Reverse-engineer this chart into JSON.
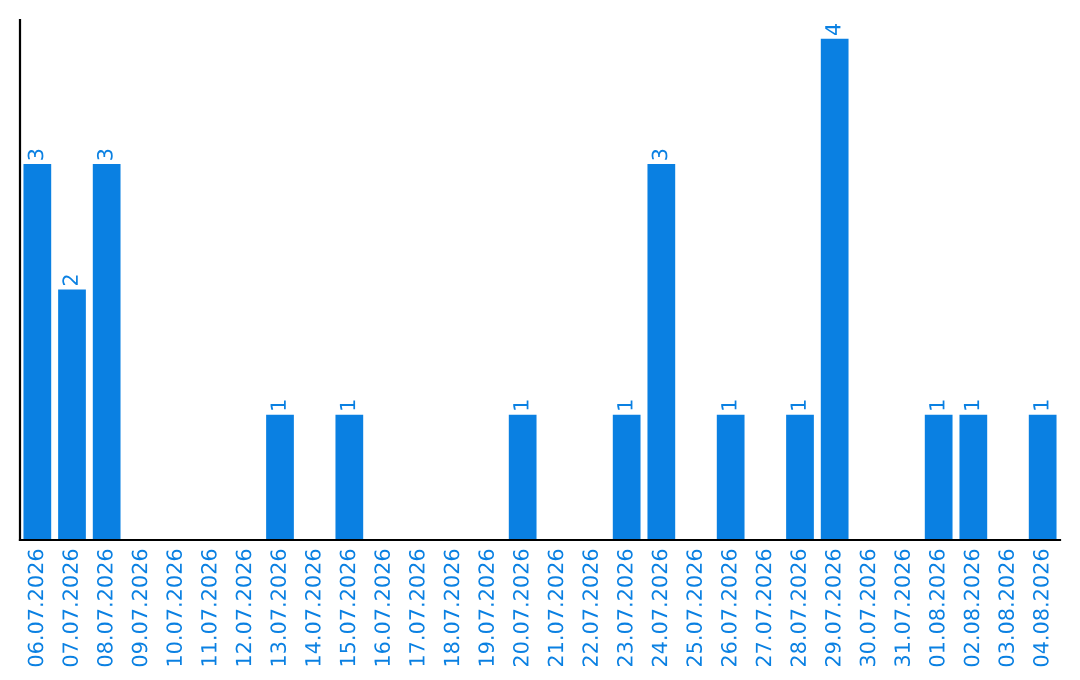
{
  "chart_data": {
    "type": "bar",
    "categories": [
      "06.07.2026",
      "07.07.2026",
      "08.07.2026",
      "09.07.2026",
      "10.07.2026",
      "11.07.2026",
      "12.07.2026",
      "13.07.2026",
      "14.07.2026",
      "15.07.2026",
      "16.07.2026",
      "17.07.2026",
      "18.07.2026",
      "19.07.2026",
      "20.07.2026",
      "21.07.2026",
      "22.07.2026",
      "23.07.2026",
      "24.07.2026",
      "25.07.2026",
      "26.07.2026",
      "27.07.2026",
      "28.07.2026",
      "29.07.2026",
      "30.07.2026",
      "31.07.2026",
      "01.08.2026",
      "02.08.2026",
      "03.08.2026",
      "04.08.2026"
    ],
    "values": [
      3,
      2,
      3,
      0,
      0,
      0,
      0,
      1,
      0,
      1,
      0,
      0,
      0,
      0,
      1,
      0,
      0,
      1,
      3,
      0,
      1,
      0,
      1,
      4,
      0,
      0,
      1,
      1,
      0,
      1
    ],
    "value_labels": [
      "3",
      "2",
      "3",
      null,
      null,
      null,
      null,
      "1",
      null,
      "1",
      null,
      null,
      null,
      null,
      "1",
      null,
      null,
      "1",
      "3",
      null,
      "1",
      null,
      "1",
      "4",
      null,
      null,
      "1",
      "1",
      null,
      "1"
    ],
    "color": "#0a80e2",
    "ylim": [
      0,
      4.15
    ],
    "tick_labels": "x",
    "grid": false,
    "legend": false
  }
}
